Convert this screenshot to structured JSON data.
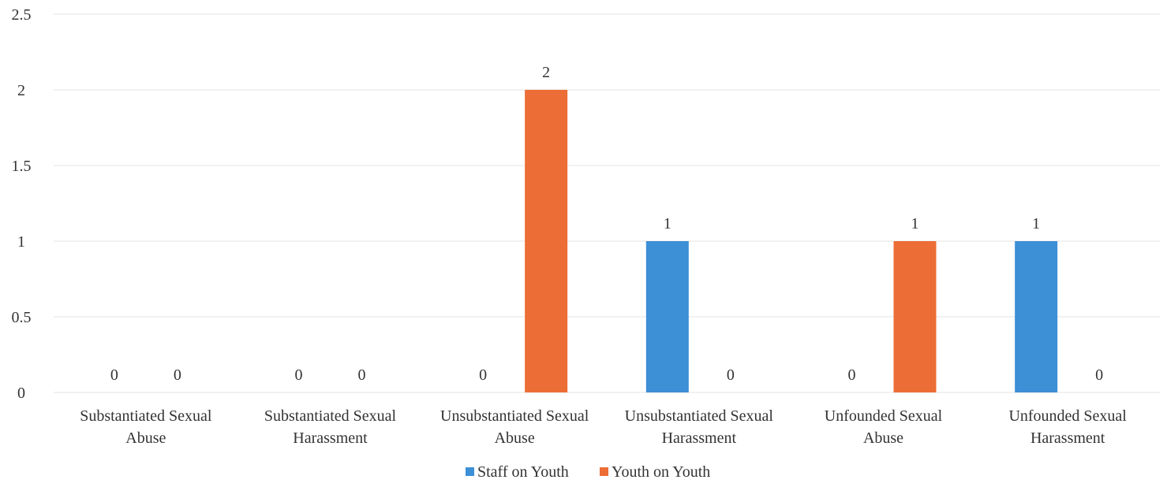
{
  "chart_data": {
    "type": "bar",
    "title": "",
    "xlabel": "",
    "ylabel": "",
    "ylim": [
      0,
      2.5
    ],
    "yticks": [
      "0",
      "0.5",
      "1",
      "1.5",
      "2",
      "2.5"
    ],
    "ytick_values": [
      0,
      0.5,
      1,
      1.5,
      2,
      2.5
    ],
    "grid": true,
    "legend_position": "bottom",
    "categories": [
      [
        "Substantiated Sexual",
        "Abuse"
      ],
      [
        "Substantiated Sexual",
        "Harassment"
      ],
      [
        "Unsubstantiated Sexual",
        "Abuse"
      ],
      [
        "Unsubstantiated Sexual",
        "Harassment"
      ],
      [
        "Unfounded Sexual",
        "Abuse"
      ],
      [
        "Unfounded Sexual",
        "Harassment"
      ]
    ],
    "series": [
      {
        "name": "Staff on Youth",
        "color": "#3d8fd6",
        "values": [
          0,
          0,
          0,
          1,
          0,
          1
        ]
      },
      {
        "name": "Youth on Youth",
        "color": "#ec6d35",
        "values": [
          0,
          0,
          2,
          0,
          1,
          0
        ]
      }
    ]
  }
}
